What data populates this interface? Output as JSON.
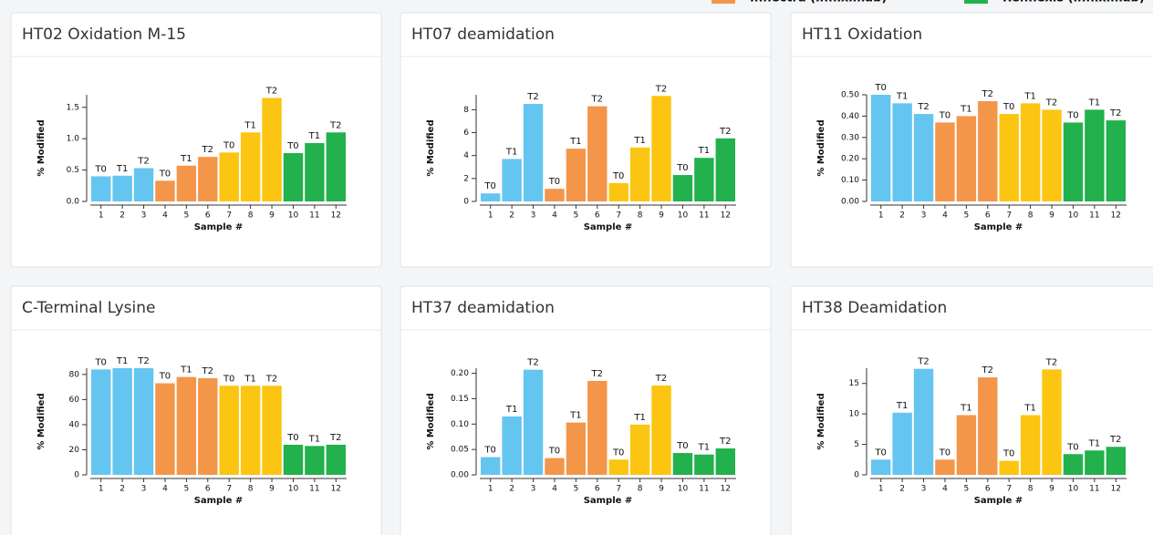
{
  "legend": [
    {
      "name": "Inflectra (infliximab)",
      "color": "#f4964a"
    },
    {
      "name": "Renflexis (infliximab)",
      "color": "#22b14c"
    }
  ],
  "chart_data": [
    {
      "type": "bar",
      "title": "HT02 Oxidation M-15",
      "x_label": "Sample #",
      "y_label": "% Modified",
      "categories": [
        "1",
        "2",
        "3",
        "4",
        "5",
        "6",
        "7",
        "8",
        "9",
        "10",
        "11",
        "12"
      ],
      "values": [
        0.4,
        0.41,
        0.53,
        0.33,
        0.57,
        0.71,
        0.78,
        1.1,
        1.65,
        0.77,
        0.93,
        1.1
      ],
      "bar_labels": [
        "T0",
        "T1",
        "T2",
        "T0",
        "T1",
        "T2",
        "T0",
        "T1",
        "T2",
        "T0",
        "T1",
        "T2"
      ],
      "colors": [
        "#64c5f1",
        "#64c5f1",
        "#64c5f1",
        "#f4964a",
        "#f4964a",
        "#f4964a",
        "#fcc512",
        "#fcc512",
        "#fcc512",
        "#22b14c",
        "#22b14c",
        "#22b14c"
      ],
      "ylim": [
        0,
        1.7
      ],
      "yticks": [
        {
          "value": 0,
          "label": "0.0"
        },
        0.5,
        {
          "value": 1,
          "label": "1.0"
        },
        1.5
      ]
    },
    {
      "type": "bar",
      "title": "HT07 deamidation",
      "x_label": "Sample #",
      "y_label": "% Modified",
      "categories": [
        "1",
        "2",
        "3",
        "4",
        "5",
        "6",
        "7",
        "8",
        "9",
        "10",
        "11",
        "12"
      ],
      "values": [
        0.7,
        3.7,
        8.5,
        1.1,
        4.6,
        8.3,
        1.6,
        4.7,
        9.2,
        2.3,
        3.8,
        5.5
      ],
      "bar_labels": [
        "T0",
        "T1",
        "T2",
        "T0",
        "T1",
        "T2",
        "T0",
        "T1",
        "T2",
        "T0",
        "T1",
        "T2"
      ],
      "colors": [
        "#64c5f1",
        "#64c5f1",
        "#64c5f1",
        "#f4964a",
        "#f4964a",
        "#f4964a",
        "#fcc512",
        "#fcc512",
        "#fcc512",
        "#22b14c",
        "#22b14c",
        "#22b14c"
      ],
      "ylim": [
        0,
        9.3
      ],
      "yticks": [
        0,
        2,
        4,
        6,
        8
      ]
    },
    {
      "type": "bar",
      "title": "HT11 Oxidation",
      "x_label": "Sample #",
      "y_label": "% Modified",
      "categories": [
        "1",
        "2",
        "3",
        "4",
        "5",
        "6",
        "7",
        "8",
        "9",
        "10",
        "11",
        "12"
      ],
      "values": [
        0.5,
        0.46,
        0.41,
        0.37,
        0.4,
        0.47,
        0.41,
        0.46,
        0.43,
        0.37,
        0.43,
        0.38
      ],
      "bar_labels": [
        "T0",
        "T1",
        "T2",
        "T0",
        "T1",
        "T2",
        "T0",
        "T1",
        "T2",
        "T0",
        "T1",
        "T2"
      ],
      "colors": [
        "#64c5f1",
        "#64c5f1",
        "#64c5f1",
        "#f4964a",
        "#f4964a",
        "#f4964a",
        "#fcc512",
        "#fcc512",
        "#fcc512",
        "#22b14c",
        "#22b14c",
        "#22b14c"
      ],
      "ylim": [
        0,
        0.5
      ],
      "yticks": [
        {
          "value": 0,
          "label": "0.00"
        },
        {
          "value": 0.1,
          "label": "0.10"
        },
        {
          "value": 0.2,
          "label": "0.20"
        },
        {
          "value": 0.3,
          "label": "0.30"
        },
        {
          "value": 0.4,
          "label": "0.40"
        },
        {
          "value": 0.5,
          "label": "0.50"
        }
      ]
    },
    {
      "type": "bar",
      "title": "C-Terminal Lysine",
      "x_label": "Sample #",
      "y_label": "% Modified",
      "categories": [
        "1",
        "2",
        "3",
        "4",
        "5",
        "6",
        "7",
        "8",
        "9",
        "10",
        "11",
        "12"
      ],
      "values": [
        84,
        85,
        85,
        73,
        78,
        77,
        71,
        71,
        71,
        24,
        23,
        24
      ],
      "bar_labels": [
        "T0",
        "T1",
        "T2",
        "T0",
        "T1",
        "T2",
        "T0",
        "T1",
        "T2",
        "T0",
        "T1",
        "T2"
      ],
      "colors": [
        "#64c5f1",
        "#64c5f1",
        "#64c5f1",
        "#f4964a",
        "#f4964a",
        "#f4964a",
        "#fcc512",
        "#fcc512",
        "#fcc512",
        "#22b14c",
        "#22b14c",
        "#22b14c"
      ],
      "ylim": [
        0,
        85
      ],
      "yticks": [
        0,
        20,
        40,
        60,
        80
      ]
    },
    {
      "type": "bar",
      "title": "HT37 deamidation",
      "x_label": "Sample #",
      "y_label": "% Modified",
      "categories": [
        "1",
        "2",
        "3",
        "4",
        "5",
        "6",
        "7",
        "8",
        "9",
        "10",
        "11",
        "12"
      ],
      "values": [
        0.035,
        0.115,
        0.207,
        0.033,
        0.103,
        0.185,
        0.03,
        0.099,
        0.176,
        0.043,
        0.04,
        0.052
      ],
      "bar_labels": [
        "T0",
        "T1",
        "T2",
        "T0",
        "T1",
        "T2",
        "T0",
        "T1",
        "T2",
        "T0",
        "T1",
        "T2"
      ],
      "colors": [
        "#64c5f1",
        "#64c5f1",
        "#64c5f1",
        "#f4964a",
        "#f4964a",
        "#f4964a",
        "#fcc512",
        "#fcc512",
        "#fcc512",
        "#22b14c",
        "#22b14c",
        "#22b14c"
      ],
      "ylim": [
        0,
        0.21
      ],
      "yticks": [
        {
          "value": 0,
          "label": "0.00"
        },
        0.05,
        {
          "value": 0.1,
          "label": "0.10"
        },
        0.15,
        {
          "value": 0.2,
          "label": "0.20"
        }
      ]
    },
    {
      "type": "bar",
      "title": "HT38 Deamidation",
      "x_label": "Sample #",
      "y_label": "% Modified",
      "categories": [
        "1",
        "2",
        "3",
        "4",
        "5",
        "6",
        "7",
        "8",
        "9",
        "10",
        "11",
        "12"
      ],
      "values": [
        2.5,
        10.2,
        17.4,
        2.5,
        9.8,
        16.0,
        2.3,
        9.8,
        17.3,
        3.4,
        4.0,
        4.6
      ],
      "bar_labels": [
        "T0",
        "T1",
        "T2",
        "T0",
        "T1",
        "T2",
        "T0",
        "T1",
        "T2",
        "T0",
        "T1",
        "T2"
      ],
      "colors": [
        "#64c5f1",
        "#64c5f1",
        "#64c5f1",
        "#f4964a",
        "#f4964a",
        "#f4964a",
        "#fcc512",
        "#fcc512",
        "#fcc512",
        "#22b14c",
        "#22b14c",
        "#22b14c"
      ],
      "ylim": [
        0,
        17.5
      ],
      "yticks": [
        0,
        5,
        10,
        15
      ]
    }
  ]
}
